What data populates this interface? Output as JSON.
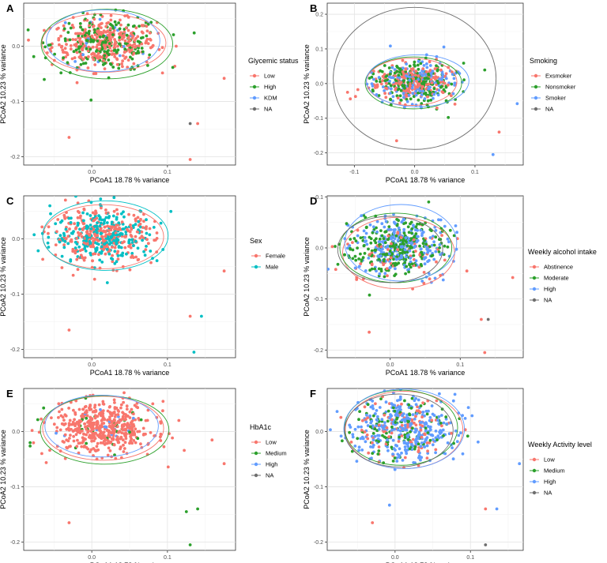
{
  "chart_data": [
    {
      "panel": "A",
      "type": "scatter",
      "xlabel": "PCoA1 18.78 % variance",
      "ylabel": "PCoA2 10.23 % variance",
      "xlim": [
        -0.09,
        0.19
      ],
      "ylim": [
        -0.215,
        0.078
      ],
      "xticks": [
        0.0,
        0.1
      ],
      "yticks": [
        0.0,
        -0.1,
        -0.2
      ],
      "grid": true,
      "legend_title": "Glycemic status",
      "legend": [
        {
          "label": "Low",
          "color": "#F8766D"
        },
        {
          "label": "High",
          "color": "#2CA02C"
        },
        {
          "label": "KDM",
          "color": "#619CFF"
        },
        {
          "label": "NA",
          "color": "#6E6E6E"
        }
      ],
      "ellipses": [
        {
          "series": "Low",
          "cx": 0.016,
          "cy": 0.006,
          "rx": 0.082,
          "ry": 0.053
        },
        {
          "series": "High",
          "cx": 0.02,
          "cy": 0.004,
          "rx": 0.087,
          "ry": 0.063
        },
        {
          "series": "KDM",
          "cx": 0.015,
          "cy": 0.01,
          "rx": 0.075,
          "ry": 0.056
        }
      ],
      "sample_counts": [
        {
          "series": "Low",
          "n": 340
        },
        {
          "series": "High",
          "n": 200
        },
        {
          "series": "KDM",
          "n": 20
        }
      ],
      "outliers": [
        {
          "series": "Low",
          "x": 0.175,
          "y": -0.058
        },
        {
          "series": "Low",
          "x": 0.14,
          "y": -0.14
        },
        {
          "series": "Low",
          "x": 0.13,
          "y": -0.205
        },
        {
          "series": "NA",
          "x": 0.13,
          "y": -0.14
        },
        {
          "series": "Low",
          "x": -0.03,
          "y": -0.165
        }
      ]
    },
    {
      "panel": "B",
      "type": "scatter",
      "xlabel": "PCoA1 18.78 % variance",
      "ylabel": "PCoA2 10.23 % variance",
      "xlim": [
        -0.145,
        0.18
      ],
      "ylim": [
        -0.235,
        0.232
      ],
      "xticks": [
        -0.1,
        0.0,
        0.1
      ],
      "yticks": [
        0.2,
        0.1,
        0.0,
        -0.1,
        -0.2
      ],
      "grid": true,
      "legend_title": "Smoking",
      "legend": [
        {
          "label": "Exsmoker",
          "color": "#F8766D"
        },
        {
          "label": "Nonsmoker",
          "color": "#2CA02C"
        },
        {
          "label": "Smoker",
          "color": "#619CFF"
        },
        {
          "label": "NA",
          "color": "#6E6E6E"
        }
      ],
      "ellipses": [
        {
          "series": "Exsmoker",
          "cx": -0.005,
          "cy": 0.005,
          "rx": 0.075,
          "ry": 0.068
        },
        {
          "series": "Nonsmoker",
          "cx": -0.002,
          "cy": 0.002,
          "rx": 0.08,
          "ry": 0.075
        },
        {
          "series": "Smoker",
          "cx": 0.005,
          "cy": 0.008,
          "rx": 0.085,
          "ry": 0.075
        },
        {
          "series": "NA",
          "cx": 0.0,
          "cy": 0.015,
          "rx": 0.135,
          "ry": 0.205
        }
      ],
      "sample_counts": [
        {
          "series": "Exsmoker",
          "n": 200
        },
        {
          "series": "Nonsmoker",
          "n": 200
        },
        {
          "series": "Smoker",
          "n": 160
        }
      ],
      "outliers": [
        {
          "series": "Smoker",
          "x": 0.17,
          "y": -0.058
        },
        {
          "series": "Exsmoker",
          "x": 0.14,
          "y": -0.14
        },
        {
          "series": "Smoker",
          "x": 0.13,
          "y": -0.205
        },
        {
          "series": "Exsmoker",
          "x": -0.03,
          "y": -0.165
        }
      ]
    },
    {
      "panel": "C",
      "type": "scatter",
      "xlabel": "PCoA1 18.78 % variance",
      "ylabel": "PCoA2 10.23 % variance",
      "xlim": [
        -0.09,
        0.19
      ],
      "ylim": [
        -0.215,
        0.078
      ],
      "xticks": [
        0.0,
        0.1
      ],
      "yticks": [
        0.0,
        -0.1,
        -0.2
      ],
      "grid": true,
      "legend_title": "Sex",
      "legend": [
        {
          "label": "Female",
          "color": "#F8766D"
        },
        {
          "label": "Male",
          "color": "#00BFC4"
        }
      ],
      "ellipses": [
        {
          "series": "Female",
          "cx": 0.015,
          "cy": 0.004,
          "rx": 0.08,
          "ry": 0.058
        },
        {
          "series": "Male",
          "cx": 0.018,
          "cy": 0.006,
          "rx": 0.083,
          "ry": 0.063
        }
      ],
      "sample_counts": [
        {
          "series": "Female",
          "n": 300
        },
        {
          "series": "Male",
          "n": 260
        }
      ],
      "outliers": [
        {
          "series": "Female",
          "x": 0.175,
          "y": -0.058
        },
        {
          "series": "Female",
          "x": 0.13,
          "y": -0.14
        },
        {
          "series": "Male",
          "x": 0.145,
          "y": -0.14
        },
        {
          "series": "Male",
          "x": 0.135,
          "y": -0.205
        },
        {
          "series": "Female",
          "x": -0.03,
          "y": -0.165
        }
      ]
    },
    {
      "panel": "D",
      "type": "scatter",
      "xlabel": "PCoA1 18.78 % variance",
      "ylabel": "PCoA2 10.23 % variance",
      "xlim": [
        -0.09,
        0.19
      ],
      "ylim": [
        -0.215,
        0.102
      ],
      "xticks": [
        0.0,
        0.1
      ],
      "yticks": [
        0.1,
        0.0,
        -0.1,
        -0.2
      ],
      "grid": true,
      "legend_title": "Weekly alcohol intake",
      "legend": [
        {
          "label": "Abstinence",
          "color": "#F8766D"
        },
        {
          "label": "Moderate",
          "color": "#2CA02C"
        },
        {
          "label": "High",
          "color": "#619CFF"
        },
        {
          "label": "NA",
          "color": "#6E6E6E"
        }
      ],
      "ellipses": [
        {
          "series": "Abstinence",
          "cx": 0.012,
          "cy": -0.01,
          "rx": 0.08,
          "ry": 0.07
        },
        {
          "series": "Moderate",
          "cx": 0.008,
          "cy": 0.0,
          "rx": 0.08,
          "ry": 0.068
        },
        {
          "series": "High",
          "cx": 0.015,
          "cy": 0.01,
          "rx": 0.08,
          "ry": 0.075
        },
        {
          "series": "NA",
          "cx": 0.0,
          "cy": -0.003,
          "rx": 0.075,
          "ry": 0.065
        }
      ],
      "sample_counts": [
        {
          "series": "Abstinence",
          "n": 80
        },
        {
          "series": "Moderate",
          "n": 260
        },
        {
          "series": "High",
          "n": 240
        }
      ],
      "outliers": [
        {
          "series": "Abstinence",
          "x": 0.175,
          "y": -0.058
        },
        {
          "series": "Abstinence",
          "x": 0.13,
          "y": -0.14
        },
        {
          "series": "NA",
          "x": 0.14,
          "y": -0.14
        },
        {
          "series": "Abstinence",
          "x": 0.135,
          "y": -0.205
        },
        {
          "series": "Abstinence",
          "x": -0.03,
          "y": -0.165
        }
      ]
    },
    {
      "panel": "E",
      "type": "scatter",
      "xlabel": "PCoA1 18.78 % variance",
      "ylabel": "PCoA2 10.23 % variance",
      "xlim": [
        -0.09,
        0.19
      ],
      "ylim": [
        -0.215,
        0.078
      ],
      "xticks": [
        0.0,
        0.1
      ],
      "yticks": [
        0.0,
        -0.1,
        -0.2
      ],
      "grid": true,
      "legend_title": "HbA1c",
      "legend": [
        {
          "label": "Low",
          "color": "#F8766D"
        },
        {
          "label": "Medium",
          "color": "#2CA02C"
        },
        {
          "label": "High",
          "color": "#619CFF"
        },
        {
          "label": "NA",
          "color": "#6E6E6E"
        }
      ],
      "ellipses": [
        {
          "series": "Low",
          "cx": 0.015,
          "cy": 0.006,
          "rx": 0.08,
          "ry": 0.058
        },
        {
          "series": "Medium",
          "cx": 0.017,
          "cy": 0.003,
          "rx": 0.085,
          "ry": 0.062
        },
        {
          "series": "High",
          "cx": 0.013,
          "cy": 0.01,
          "rx": 0.075,
          "ry": 0.056
        }
      ],
      "sample_counts": [
        {
          "series": "Low",
          "n": 500
        },
        {
          "series": "Medium",
          "n": 30
        },
        {
          "series": "High",
          "n": 20
        }
      ],
      "outliers": [
        {
          "series": "Low",
          "x": 0.175,
          "y": -0.058
        },
        {
          "series": "Medium",
          "x": 0.14,
          "y": -0.14
        },
        {
          "series": "Medium",
          "x": 0.125,
          "y": -0.145
        },
        {
          "series": "Medium",
          "x": 0.13,
          "y": -0.205
        },
        {
          "series": "Low",
          "x": -0.03,
          "y": -0.165
        }
      ]
    },
    {
      "panel": "F",
      "type": "scatter",
      "xlabel": "PCoA1 18.78 % variance",
      "ylabel": "PCoA2 10.23 % variance",
      "xlim": [
        -0.09,
        0.17
      ],
      "ylim": [
        -0.215,
        0.078
      ],
      "xticks": [
        0.0,
        0.1
      ],
      "yticks": [
        0.0,
        -0.1,
        -0.2
      ],
      "grid": true,
      "legend_title": "Weekly Activity level",
      "legend": [
        {
          "label": "Low",
          "color": "#F8766D"
        },
        {
          "label": "Medium",
          "color": "#2CA02C"
        },
        {
          "label": "High",
          "color": "#619CFF"
        },
        {
          "label": "NA",
          "color": "#6E6E6E"
        }
      ],
      "ellipses": [
        {
          "series": "Low",
          "cx": 0.012,
          "cy": 0.003,
          "rx": 0.078,
          "ry": 0.07
        },
        {
          "series": "Medium",
          "cx": 0.008,
          "cy": 0.007,
          "rx": 0.075,
          "ry": 0.068
        },
        {
          "series": "High",
          "cx": 0.012,
          "cy": 0.005,
          "rx": 0.08,
          "ry": 0.072
        },
        {
          "series": "NA",
          "cx": 0.005,
          "cy": 0.002,
          "rx": 0.072,
          "ry": 0.066
        }
      ],
      "sample_counts": [
        {
          "series": "Low",
          "n": 100
        },
        {
          "series": "Medium",
          "n": 120
        },
        {
          "series": "High",
          "n": 340
        }
      ],
      "outliers": [
        {
          "series": "High",
          "x": 0.165,
          "y": -0.058
        },
        {
          "series": "Low",
          "x": 0.12,
          "y": -0.14
        },
        {
          "series": "High",
          "x": 0.135,
          "y": -0.14
        },
        {
          "series": "NA",
          "x": 0.12,
          "y": -0.205
        },
        {
          "series": "Low",
          "x": -0.03,
          "y": -0.165
        }
      ]
    }
  ]
}
